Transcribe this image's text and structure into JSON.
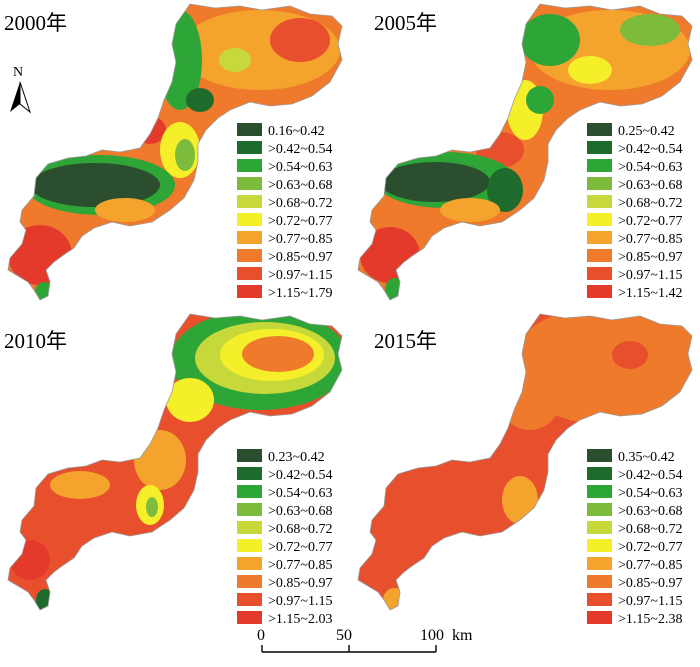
{
  "panels": [
    {
      "year_label": "2000年",
      "legend": [
        {
          "label": "0.16~0.42",
          "color": "#2b4f2e"
        },
        {
          "label": ">0.42~0.54",
          "color": "#1f6b2c"
        },
        {
          "label": ">0.54~0.63",
          "color": "#2ea537"
        },
        {
          "label": ">0.63~0.68",
          "color": "#7dbb3c"
        },
        {
          "label": ">0.68~0.72",
          "color": "#c7d93a"
        },
        {
          "label": ">0.72~0.77",
          "color": "#f5ef2a"
        },
        {
          "label": ">0.77~0.85",
          "color": "#f4a42c"
        },
        {
          "label": ">0.85~0.97",
          "color": "#ef7a2c"
        },
        {
          "label": ">0.97~1.15",
          "color": "#e8502d"
        },
        {
          "label": ">1.15~1.79",
          "color": "#e43a2c"
        }
      ]
    },
    {
      "year_label": "2005年",
      "legend": [
        {
          "label": "0.25~0.42",
          "color": "#2b4f2e"
        },
        {
          "label": ">0.42~0.54",
          "color": "#1f6b2c"
        },
        {
          "label": ">0.54~0.63",
          "color": "#2ea537"
        },
        {
          "label": ">0.63~0.68",
          "color": "#7dbb3c"
        },
        {
          "label": ">0.68~0.72",
          "color": "#c7d93a"
        },
        {
          "label": ">0.72~0.77",
          "color": "#f5ef2a"
        },
        {
          "label": ">0.77~0.85",
          "color": "#f4a42c"
        },
        {
          "label": ">0.85~0.97",
          "color": "#ef7a2c"
        },
        {
          "label": ">0.97~1.15",
          "color": "#e8502d"
        },
        {
          "label": ">1.15~1.42",
          "color": "#e43a2c"
        }
      ]
    },
    {
      "year_label": "2010年",
      "legend": [
        {
          "label": "0.23~0.42",
          "color": "#2b4f2e"
        },
        {
          "label": ">0.42~0.54",
          "color": "#1f6b2c"
        },
        {
          "label": ">0.54~0.63",
          "color": "#2ea537"
        },
        {
          "label": ">0.63~0.68",
          "color": "#7dbb3c"
        },
        {
          "label": ">0.68~0.72",
          "color": "#c7d93a"
        },
        {
          "label": ">0.72~0.77",
          "color": "#f5ef2a"
        },
        {
          "label": ">0.77~0.85",
          "color": "#f4a42c"
        },
        {
          "label": ">0.85~0.97",
          "color": "#ef7a2c"
        },
        {
          "label": ">0.97~1.15",
          "color": "#e8502d"
        },
        {
          "label": ">1.15~2.03",
          "color": "#e43a2c"
        }
      ]
    },
    {
      "year_label": "2015年",
      "legend": [
        {
          "label": "0.35~0.42",
          "color": "#2b4f2e"
        },
        {
          "label": ">0.42~0.54",
          "color": "#1f6b2c"
        },
        {
          "label": ">0.54~0.63",
          "color": "#2ea537"
        },
        {
          "label": ">0.63~0.68",
          "color": "#7dbb3c"
        },
        {
          "label": ">0.68~0.72",
          "color": "#c7d93a"
        },
        {
          "label": ">0.72~0.77",
          "color": "#f5ef2a"
        },
        {
          "label": ">0.77~0.85",
          "color": "#f4a42c"
        },
        {
          "label": ">0.85~0.97",
          "color": "#ef7a2c"
        },
        {
          "label": ">0.97~1.15",
          "color": "#e8502d"
        },
        {
          "label": ">1.15~2.38",
          "color": "#e43a2c"
        }
      ]
    }
  ],
  "north_arrow": {
    "letter": "N"
  },
  "scale_bar": {
    "ticks": [
      "0",
      "50",
      "100"
    ],
    "unit": "km"
  }
}
